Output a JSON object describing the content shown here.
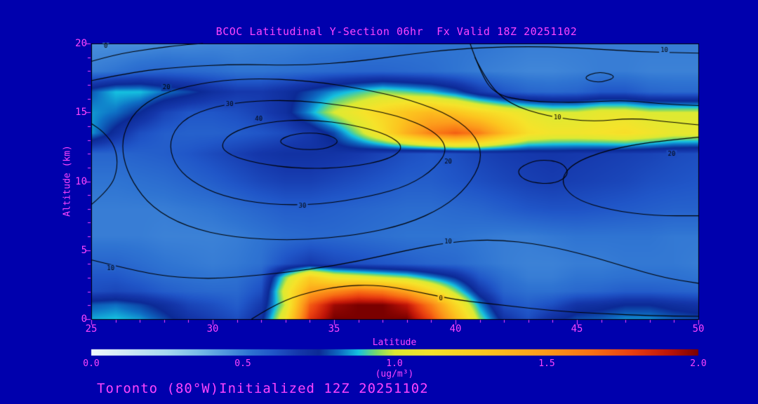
{
  "page": {
    "background": "#0000ad",
    "text_color": "#ff44ff"
  },
  "footer": {
    "text": "Toronto (80°W)Initialized 12Z 20251102"
  },
  "chart_data": {
    "type": "heatmap",
    "title": "BCOC Latitudinal Y-Section 06hr  Fx Valid 18Z 20251102",
    "xlabel": "Latitude",
    "ylabel": "Altitude (km)",
    "x_range": [
      25,
      50
    ],
    "y_range": [
      0,
      20
    ],
    "x_ticks": [
      25,
      30,
      35,
      40,
      45,
      50
    ],
    "y_ticks": [
      0,
      5,
      10,
      15,
      20
    ],
    "minor_tick_step": 1,
    "grid": false,
    "frame_color": "#000000",
    "contour_color": "#000000",
    "colorbar": {
      "min": 0.0,
      "max": 2.0,
      "ticks": [
        "0.0",
        "0.5",
        "1.0",
        "1.5",
        "2.0"
      ],
      "unit": "(ug/m³)"
    },
    "colormap": [
      [
        0.0,
        "#f2f8fc"
      ],
      [
        0.12,
        "#cfe9f6"
      ],
      [
        0.25,
        "#a6d8f0"
      ],
      [
        0.35,
        "#7bbde8"
      ],
      [
        0.44,
        "#5198de"
      ],
      [
        0.52,
        "#2f74d2"
      ],
      [
        0.6,
        "#2056c8"
      ],
      [
        0.68,
        "#1538ac"
      ],
      [
        0.75,
        "#0c2a96"
      ],
      [
        0.82,
        "#0e6ec4"
      ],
      [
        0.88,
        "#15c1e0"
      ],
      [
        0.94,
        "#7ad96a"
      ],
      [
        1.0,
        "#ddea32"
      ],
      [
        1.12,
        "#f6e32a"
      ],
      [
        1.3,
        "#fcc51f"
      ],
      [
        1.5,
        "#fc9a1b"
      ],
      [
        1.65,
        "#f87014"
      ],
      [
        1.78,
        "#e93f10"
      ],
      [
        1.9,
        "#bf1508"
      ],
      [
        2.0,
        "#7a0000"
      ]
    ],
    "fill_grid": {
      "lats": [
        25,
        26,
        27,
        28,
        29,
        30,
        31,
        32,
        33,
        34,
        35,
        36,
        37,
        38,
        39,
        40,
        41,
        42,
        43,
        44,
        45,
        46,
        47,
        48,
        49,
        50
      ],
      "alts": [
        0,
        1,
        2,
        3,
        4,
        6,
        8,
        10,
        12,
        13.5,
        15,
        16.5,
        18,
        20
      ],
      "values": [
        [
          0.86,
          0.88,
          0.85,
          0.78,
          0.7,
          0.66,
          0.62,
          0.72,
          1.1,
          1.8,
          2.0,
          2.0,
          2.0,
          2.0,
          1.75,
          1.35,
          0.95,
          0.7,
          0.62,
          0.72,
          0.78,
          0.8,
          0.84,
          0.84,
          0.8,
          0.78
        ],
        [
          0.8,
          0.82,
          0.78,
          0.72,
          0.65,
          0.62,
          0.58,
          0.68,
          1.0,
          1.7,
          1.95,
          2.0,
          2.0,
          1.9,
          1.6,
          1.2,
          0.85,
          0.62,
          0.58,
          0.62,
          0.7,
          0.72,
          0.75,
          0.75,
          0.72,
          0.7
        ],
        [
          0.62,
          0.64,
          0.62,
          0.58,
          0.56,
          0.55,
          0.55,
          0.62,
          1.05,
          1.45,
          1.55,
          1.65,
          1.6,
          1.45,
          1.2,
          0.95,
          0.7,
          0.56,
          0.53,
          0.53,
          0.55,
          0.56,
          0.58,
          0.58,
          0.57,
          0.56
        ],
        [
          0.6,
          0.6,
          0.57,
          0.54,
          0.53,
          0.52,
          0.53,
          0.58,
          0.95,
          1.25,
          1.1,
          1.05,
          1.0,
          0.95,
          0.85,
          0.75,
          0.6,
          0.53,
          0.5,
          0.5,
          0.52,
          0.52,
          0.53,
          0.53,
          0.53,
          0.52
        ],
        [
          0.56,
          0.56,
          0.54,
          0.52,
          0.51,
          0.5,
          0.51,
          0.53,
          0.62,
          0.68,
          0.64,
          0.62,
          0.6,
          0.58,
          0.56,
          0.55,
          0.52,
          0.5,
          0.49,
          0.49,
          0.5,
          0.5,
          0.51,
          0.51,
          0.51,
          0.5
        ],
        [
          0.5,
          0.5,
          0.5,
          0.49,
          0.49,
          0.49,
          0.5,
          0.52,
          0.54,
          0.55,
          0.55,
          0.54,
          0.53,
          0.52,
          0.52,
          0.52,
          0.51,
          0.5,
          0.5,
          0.51,
          0.52,
          0.52,
          0.52,
          0.52,
          0.51,
          0.51
        ],
        [
          0.5,
          0.5,
          0.5,
          0.5,
          0.51,
          0.52,
          0.54,
          0.56,
          0.58,
          0.58,
          0.57,
          0.56,
          0.55,
          0.54,
          0.54,
          0.55,
          0.56,
          0.58,
          0.6,
          0.61,
          0.61,
          0.6,
          0.59,
          0.58,
          0.57,
          0.57
        ],
        [
          0.52,
          0.52,
          0.53,
          0.54,
          0.56,
          0.58,
          0.61,
          0.64,
          0.66,
          0.66,
          0.64,
          0.62,
          0.6,
          0.58,
          0.58,
          0.6,
          0.62,
          0.64,
          0.66,
          0.67,
          0.66,
          0.65,
          0.64,
          0.62,
          0.61,
          0.6
        ],
        [
          0.56,
          0.56,
          0.57,
          0.58,
          0.6,
          0.63,
          0.66,
          0.69,
          0.71,
          0.71,
          0.7,
          0.68,
          0.65,
          0.62,
          0.6,
          0.62,
          0.65,
          0.67,
          0.68,
          0.69,
          0.68,
          0.67,
          0.66,
          0.65,
          0.63,
          0.62
        ],
        [
          0.85,
          0.72,
          0.62,
          0.58,
          0.57,
          0.57,
          0.58,
          0.6,
          0.63,
          0.68,
          0.78,
          0.95,
          1.15,
          1.4,
          1.6,
          1.7,
          1.6,
          1.35,
          1.15,
          1.1,
          1.1,
          1.12,
          1.15,
          1.1,
          1.05,
          1.05
        ],
        [
          0.85,
          0.82,
          0.75,
          0.65,
          0.6,
          0.6,
          0.62,
          0.66,
          0.72,
          0.85,
          1.0,
          1.1,
          1.2,
          1.3,
          1.35,
          1.3,
          1.2,
          1.12,
          1.05,
          1.0,
          1.0,
          1.05,
          1.05,
          1.0,
          1.0,
          1.0
        ],
        [
          0.8,
          0.88,
          0.88,
          0.82,
          0.78,
          0.72,
          0.68,
          0.68,
          0.72,
          0.78,
          0.85,
          0.9,
          0.95,
          0.92,
          0.88,
          0.8,
          0.68,
          0.6,
          0.56,
          0.55,
          0.56,
          0.6,
          0.6,
          0.56,
          0.55,
          0.55
        ],
        [
          0.5,
          0.52,
          0.55,
          0.56,
          0.55,
          0.54,
          0.52,
          0.52,
          0.53,
          0.54,
          0.55,
          0.56,
          0.56,
          0.55,
          0.54,
          0.52,
          0.5,
          0.49,
          0.48,
          0.48,
          0.49,
          0.5,
          0.5,
          0.49,
          0.49,
          0.49
        ],
        [
          0.46,
          0.46,
          0.46,
          0.47,
          0.47,
          0.48,
          0.48,
          0.49,
          0.49,
          0.5,
          0.5,
          0.51,
          0.51,
          0.52,
          0.52,
          0.52,
          0.52,
          0.51,
          0.5,
          0.5,
          0.5,
          0.5,
          0.5,
          0.5,
          0.5,
          0.5
        ]
      ]
    },
    "contour_levels": [
      0,
      10,
      20,
      30,
      40
    ],
    "contours": [
      {
        "level": 40,
        "closed": true,
        "labels": [
          [
            31.9,
            14.5
          ]
        ],
        "points": [
          [
            30.3,
            12.6
          ],
          [
            30.8,
            13.6
          ],
          [
            32.2,
            14.3
          ],
          [
            34,
            14.5
          ],
          [
            35.8,
            14.1
          ],
          [
            37.2,
            13.4
          ],
          [
            37.9,
            12.5
          ],
          [
            37.3,
            11.6
          ],
          [
            35.6,
            11.0
          ],
          [
            33.6,
            10.9
          ],
          [
            31.8,
            11.3
          ],
          [
            30.7,
            11.9
          ]
        ]
      },
      {
        "level": 40,
        "closed": true,
        "labels": [],
        "points": [
          [
            32.6,
            12.9
          ],
          [
            33.4,
            13.5
          ],
          [
            34.6,
            13.5
          ],
          [
            35.3,
            12.9
          ],
          [
            34.6,
            12.3
          ],
          [
            33.4,
            12.3
          ]
        ]
      },
      {
        "level": 30,
        "closed": true,
        "labels": [
          [
            30.7,
            15.6
          ],
          [
            33.7,
            8.2
          ]
        ],
        "points": [
          [
            28.2,
            12.9
          ],
          [
            28.7,
            14.4
          ],
          [
            29.8,
            15.3
          ],
          [
            31.3,
            15.8
          ],
          [
            33.4,
            15.9
          ],
          [
            35.5,
            15.5
          ],
          [
            37.6,
            14.8
          ],
          [
            39.1,
            13.7
          ],
          [
            39.7,
            12.4
          ],
          [
            39.2,
            11.0
          ],
          [
            38.1,
            9.7
          ],
          [
            36.5,
            8.9
          ],
          [
            34.4,
            8.3
          ],
          [
            32.3,
            8.3
          ],
          [
            30.4,
            8.9
          ],
          [
            29.1,
            10.0
          ],
          [
            28.4,
            11.3
          ]
        ]
      },
      {
        "level": 20,
        "closed": true,
        "labels": [
          [
            28.1,
            16.8
          ],
          [
            39.7,
            11.4
          ]
        ],
        "points": [
          [
            26.3,
            13.4
          ],
          [
            26.8,
            15.1
          ],
          [
            27.8,
            16.3
          ],
          [
            29.4,
            17.1
          ],
          [
            31.5,
            17.5
          ],
          [
            34,
            17.3
          ],
          [
            36.2,
            16.7
          ],
          [
            38.2,
            15.9
          ],
          [
            39.9,
            14.7
          ],
          [
            40.9,
            13.2
          ],
          [
            41.1,
            11.5
          ],
          [
            40.5,
            9.6
          ],
          [
            39.5,
            8.1
          ],
          [
            38,
            6.9
          ],
          [
            36,
            6.1
          ],
          [
            33.5,
            5.7
          ],
          [
            30.9,
            5.9
          ],
          [
            28.9,
            6.7
          ],
          [
            27.5,
            8.1
          ],
          [
            26.7,
            9.9
          ],
          [
            26.3,
            11.7
          ]
        ]
      },
      {
        "level": 10,
        "closed": false,
        "labels": [
          [
            48.6,
            19.5
          ]
        ],
        "points": [
          [
            25,
            17.3
          ],
          [
            26.6,
            17.9
          ],
          [
            28.6,
            18.3
          ],
          [
            31,
            18.5
          ],
          [
            33.6,
            18.4
          ],
          [
            36,
            18.7
          ],
          [
            38,
            19.2
          ],
          [
            40,
            19.6
          ],
          [
            42.6,
            19.8
          ],
          [
            45,
            19.7
          ],
          [
            47.5,
            19.4
          ],
          [
            50,
            19.3
          ]
        ]
      },
      {
        "level": 10,
        "closed": false,
        "labels": [
          [
            25.8,
            3.7
          ],
          [
            39.7,
            5.6
          ]
        ],
        "points": [
          [
            25,
            4.3
          ],
          [
            26.6,
            3.6
          ],
          [
            28.1,
            3.1
          ],
          [
            30,
            2.9
          ],
          [
            32,
            3.2
          ],
          [
            34,
            3.6
          ],
          [
            36,
            4.2
          ],
          [
            38,
            5.0
          ],
          [
            39.8,
            5.6
          ],
          [
            41.6,
            5.8
          ],
          [
            43.6,
            5.4
          ],
          [
            45.5,
            4.6
          ],
          [
            47,
            3.8
          ],
          [
            48.6,
            3.0
          ],
          [
            50,
            2.6
          ]
        ]
      },
      {
        "level": 10,
        "closed": false,
        "labels": [
          [
            44.2,
            14.6
          ]
        ],
        "points": [
          [
            40.8,
            19.0
          ],
          [
            41.3,
            17.2
          ],
          [
            42.2,
            15.6
          ],
          [
            43.8,
            14.7
          ],
          [
            45.6,
            14.3
          ],
          [
            47.3,
            14.6
          ],
          [
            48.8,
            14.3
          ],
          [
            50,
            14.1
          ]
        ]
      },
      {
        "level": 10,
        "closed": false,
        "labels": [],
        "points": [
          [
            40.6,
            20
          ],
          [
            41.0,
            18.0
          ],
          [
            41.6,
            16.3
          ],
          [
            43,
            15.8
          ],
          [
            45,
            15.7
          ],
          [
            47,
            15.9
          ],
          [
            48.5,
            15.6
          ],
          [
            50,
            15.5
          ]
        ]
      },
      {
        "level": 10,
        "closed": false,
        "labels": [],
        "points": [
          [
            25,
            8.3
          ],
          [
            25.8,
            9.5
          ],
          [
            26.1,
            11.0
          ],
          [
            26.0,
            12.5
          ],
          [
            25.5,
            13.6
          ],
          [
            25,
            14.2
          ]
        ]
      },
      {
        "level": 10,
        "closed": true,
        "labels": [],
        "points": [
          [
            45.2,
            17.5
          ],
          [
            45.9,
            18.0
          ],
          [
            46.7,
            17.6
          ],
          [
            45.9,
            17.1
          ]
        ]
      },
      {
        "level": 20,
        "closed": false,
        "labels": [
          [
            48.9,
            12.0
          ]
        ],
        "points": [
          [
            50,
            13.2
          ],
          [
            48.2,
            12.9
          ],
          [
            46.3,
            12.3
          ],
          [
            44.8,
            11.3
          ],
          [
            44.3,
            10.0
          ],
          [
            44.9,
            8.7
          ],
          [
            46.4,
            7.9
          ],
          [
            48.2,
            7.5
          ],
          [
            50,
            7.5
          ]
        ]
      },
      {
        "level": 30,
        "closed": true,
        "labels": [],
        "points": [
          [
            42.6,
            11.0
          ],
          [
            43.4,
            11.6
          ],
          [
            44.4,
            11.4
          ],
          [
            44.7,
            10.5
          ],
          [
            44.1,
            9.8
          ],
          [
            43.1,
            9.9
          ],
          [
            42.6,
            10.4
          ]
        ]
      },
      {
        "level": 0,
        "closed": false,
        "labels": [
          [
            25.6,
            19.8
          ]
        ],
        "points": [
          [
            25,
            18.7
          ],
          [
            26,
            19.2
          ],
          [
            27.4,
            19.6
          ],
          [
            28.8,
            19.9
          ],
          [
            29.6,
            20
          ]
        ]
      },
      {
        "level": 0,
        "closed": false,
        "labels": [
          [
            39.4,
            1.5
          ]
        ],
        "points": [
          [
            31.6,
            0
          ],
          [
            32.4,
            0.9
          ],
          [
            33.6,
            1.8
          ],
          [
            35.2,
            2.4
          ],
          [
            36.8,
            2.5
          ],
          [
            38.4,
            2.0
          ],
          [
            40,
            1.4
          ],
          [
            42,
            1.0
          ],
          [
            44,
            0.6
          ],
          [
            46,
            0.4
          ],
          [
            48,
            0.25
          ],
          [
            50,
            0.2
          ]
        ]
      }
    ]
  }
}
